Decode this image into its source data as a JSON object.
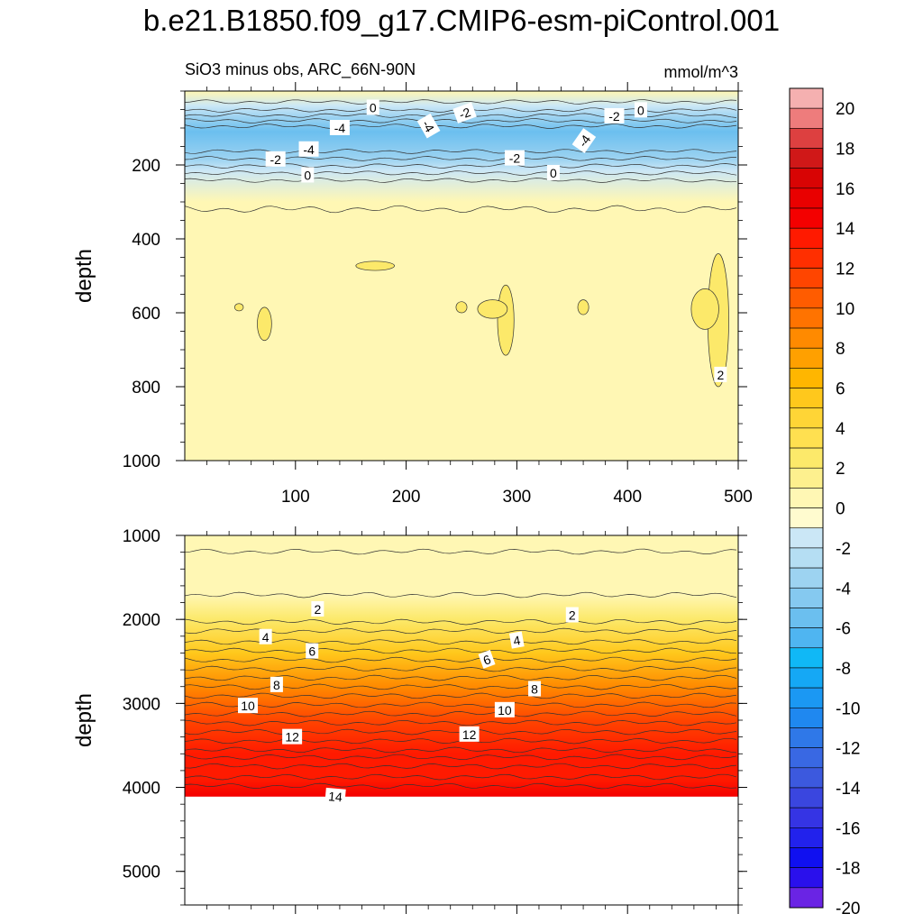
{
  "chart_data": [
    {
      "type": "contour",
      "title": "b.e21.B1850.f09_g17.CMIP6-esm-piControl.001",
      "left_string": "SiO3 minus obs, ARC_66N-90N",
      "right_string": "mmol/m^3",
      "ylabel": "depth",
      "xlabel": "",
      "xlim": [
        0,
        500
      ],
      "ylim": [
        1000,
        0
      ],
      "xticks": [
        100,
        200,
        300,
        400,
        500
      ],
      "xtick_labels": [
        "100",
        "200",
        "300",
        "400",
        "500"
      ],
      "yticks": [
        200,
        400,
        600,
        800,
        1000
      ],
      "ytick_labels": [
        "200",
        "400",
        "600",
        "800",
        "1000"
      ],
      "depth_profile": [
        {
          "depth": 0,
          "value": 1
        },
        {
          "depth": 40,
          "value": -1
        },
        {
          "depth": 70,
          "value": -3
        },
        {
          "depth": 110,
          "value": -5
        },
        {
          "depth": 150,
          "value": -4
        },
        {
          "depth": 185,
          "value": -3
        },
        {
          "depth": 215,
          "value": -1
        },
        {
          "depth": 300,
          "value": 0.5
        },
        {
          "depth": 500,
          "value": 1
        },
        {
          "depth": 1000,
          "value": 1
        }
      ],
      "contour_labels": [
        {
          "text": "0",
          "x": 170,
          "depth": 45,
          "angle": 0
        },
        {
          "text": "-2",
          "x": 253,
          "depth": 60,
          "angle": -20
        },
        {
          "text": "-4",
          "x": 220,
          "depth": 95,
          "angle": 60
        },
        {
          "text": "-4",
          "x": 140,
          "depth": 100,
          "angle": 0
        },
        {
          "text": "-2",
          "x": 388,
          "depth": 68,
          "angle": 0
        },
        {
          "text": "0",
          "x": 412,
          "depth": 52,
          "angle": 0
        },
        {
          "text": "-4",
          "x": 361,
          "depth": 135,
          "angle": -55
        },
        {
          "text": "-4",
          "x": 112,
          "depth": 158,
          "angle": 0
        },
        {
          "text": "-2",
          "x": 82,
          "depth": 185,
          "angle": 0
        },
        {
          "text": "-2",
          "x": 298,
          "depth": 182,
          "angle": 0
        },
        {
          "text": "0",
          "x": 111,
          "depth": 228,
          "angle": 0
        },
        {
          "text": "0",
          "x": 333,
          "depth": 222,
          "angle": 0
        },
        {
          "text": "2",
          "x": 484,
          "depth": 768,
          "angle": 0
        }
      ],
      "positive_patches": [
        {
          "x": 72,
          "depth": 630,
          "width": 8,
          "height": 90
        },
        {
          "x": 172,
          "depth": 473,
          "width": 30,
          "height": 25
        },
        {
          "x": 290,
          "depth": 620,
          "width": 10,
          "height": 190
        },
        {
          "x": 278,
          "depth": 590,
          "width": 22,
          "height": 50
        },
        {
          "x": 360,
          "depth": 585,
          "width": 5,
          "height": 40
        },
        {
          "x": 250,
          "depth": 585,
          "width": 5,
          "height": 30
        },
        {
          "x": 49,
          "depth": 585,
          "width": 3,
          "height": 20
        },
        {
          "x": 482,
          "depth": 620,
          "width": 14,
          "height": 360
        },
        {
          "x": 470,
          "depth": 590,
          "width": 20,
          "height": 110
        }
      ]
    },
    {
      "type": "contour",
      "ylabel": "depth",
      "xlabel": "",
      "xlim": [
        0,
        500
      ],
      "ylim": [
        5400,
        1000
      ],
      "yticks": [
        1000,
        2000,
        3000,
        4000,
        5000
      ],
      "ytick_labels": [
        "1000",
        "2000",
        "3000",
        "4000",
        "5000"
      ],
      "bottom_depth": 4110,
      "depth_profile": [
        {
          "depth": 1000,
          "value": 1
        },
        {
          "depth": 1300,
          "value": 0.5
        },
        {
          "depth": 1700,
          "value": 0.8
        },
        {
          "depth": 2000,
          "value": 2.8
        },
        {
          "depth": 2400,
          "value": 5.5
        },
        {
          "depth": 2800,
          "value": 8.8
        },
        {
          "depth": 3200,
          "value": 11.5
        },
        {
          "depth": 3600,
          "value": 13.2
        },
        {
          "depth": 3900,
          "value": 13.8
        },
        {
          "depth": 4110,
          "value": 14.3
        }
      ],
      "contour_labels": [
        {
          "text": "2",
          "x": 120,
          "depth": 1880,
          "angle": 0
        },
        {
          "text": "2",
          "x": 350,
          "depth": 1950,
          "angle": 0
        },
        {
          "text": "4",
          "x": 73,
          "depth": 2210,
          "angle": 0
        },
        {
          "text": "4",
          "x": 300,
          "depth": 2250,
          "angle": -10
        },
        {
          "text": "6",
          "x": 115,
          "depth": 2380,
          "angle": 0
        },
        {
          "text": "6",
          "x": 273,
          "depth": 2480,
          "angle": -20
        },
        {
          "text": "8",
          "x": 83,
          "depth": 2780,
          "angle": 0
        },
        {
          "text": "8",
          "x": 316,
          "depth": 2830,
          "angle": 0
        },
        {
          "text": "10",
          "x": 57,
          "depth": 3030,
          "angle": 0
        },
        {
          "text": "10",
          "x": 289,
          "depth": 3080,
          "angle": 0
        },
        {
          "text": "12",
          "x": 97,
          "depth": 3400,
          "angle": 0
        },
        {
          "text": "12",
          "x": 257,
          "depth": 3370,
          "angle": 0
        },
        {
          "text": "14",
          "x": 136,
          "depth": 4110,
          "angle": 5
        }
      ]
    }
  ],
  "colorbar": {
    "levels": [
      -20,
      -18,
      -16,
      -14,
      -12,
      -10,
      -8,
      -6,
      -4,
      -2,
      0,
      2,
      4,
      6,
      8,
      10,
      12,
      14,
      16,
      18,
      20
    ],
    "labels": [
      "20",
      "18",
      "16",
      "14",
      "12",
      "10",
      "8",
      "6",
      "4",
      "2",
      "0",
      "-2",
      "-4",
      "-6",
      "-8",
      "-10",
      "-12",
      "-14",
      "-16",
      "-18",
      "-20"
    ],
    "colors_top_to_bottom": [
      "#f5b0b0",
      "#ee7c7c",
      "#dd4040",
      "#d01818",
      "#d80404",
      "#e90000",
      "#f40000",
      "#ff1a00",
      "#ff2f00",
      "#ff4500",
      "#ff5c00",
      "#ff7300",
      "#ff8a00",
      "#ffa000",
      "#ffb600",
      "#ffc81c",
      "#ffd536",
      "#ffe050",
      "#fce96a",
      "#fdf08e",
      "#fff7b4",
      "#fffbcf",
      "#cbe7f6",
      "#b5def3",
      "#9dd3f1",
      "#85c9f0",
      "#6bbfef",
      "#4fb5f1",
      "#10b8f6",
      "#15a8f5",
      "#1b98f3",
      "#1f88f0",
      "#2f78e8",
      "#3968e3",
      "#3c59de",
      "#3a46df",
      "#3534e4",
      "#2222ec",
      "#1010f0",
      "#2a10ec",
      "#6a24e4"
    ]
  }
}
